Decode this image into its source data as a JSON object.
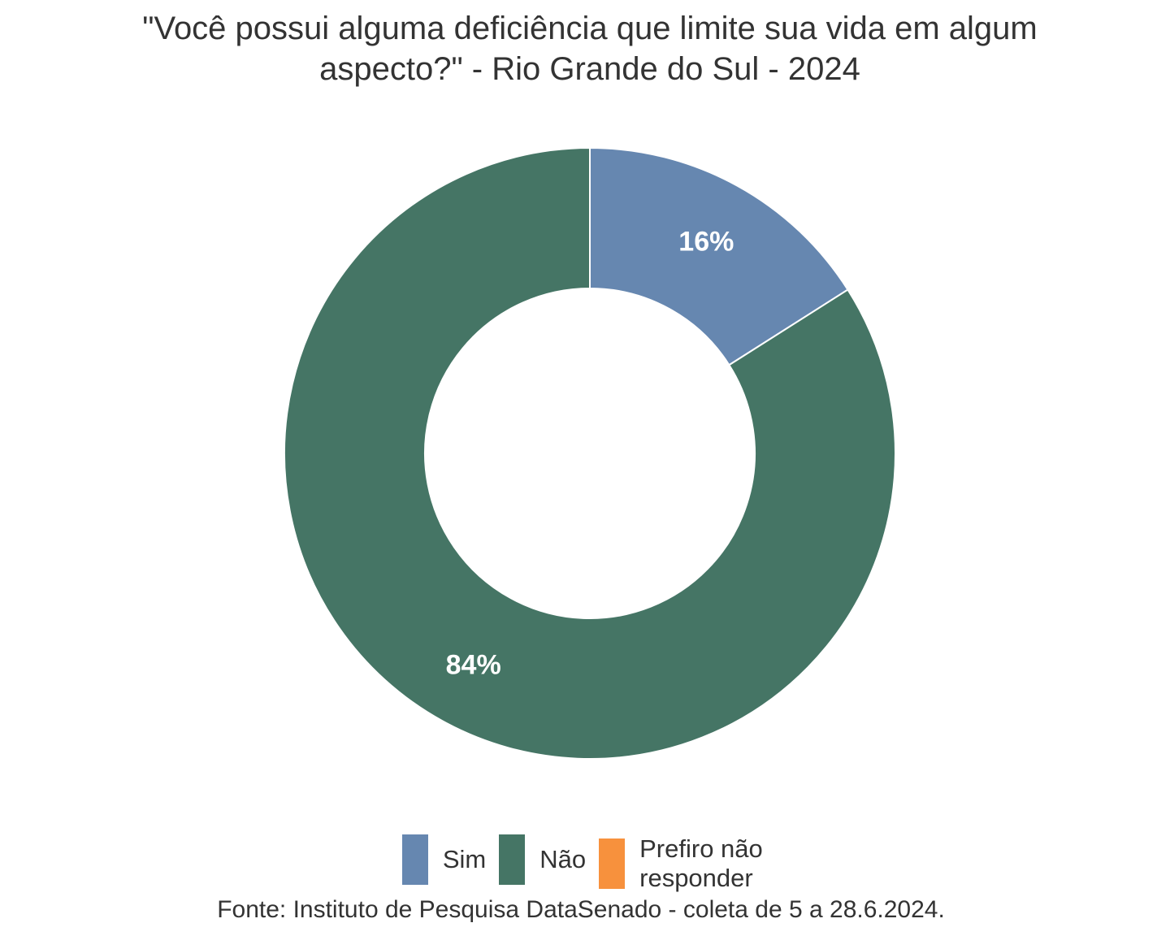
{
  "chart_data": {
    "type": "pie",
    "title_lines": [
      "\"Você possui alguma deficiência que limite sua vida em algum",
      "aspecto?\" - Rio Grande do Sul - 2024"
    ],
    "categories": [
      "Sim",
      "Não",
      "Prefiro não responder"
    ],
    "values": [
      16,
      84,
      0
    ],
    "data_labels": [
      "16%",
      "84%",
      ""
    ],
    "colors": [
      "#6687b0",
      "#457565",
      "#f7913d"
    ],
    "donut": true,
    "legend_position": "bottom"
  },
  "source": "Fonte: Instituto de Pesquisa DataSenado - coleta de 5 a 28.6.2024.",
  "legend": {
    "items": [
      {
        "label": "Sim",
        "color": "#6687b0"
      },
      {
        "label": "Não",
        "color": "#457565"
      },
      {
        "label": "Prefiro não responder",
        "color": "#f7913d"
      }
    ]
  }
}
